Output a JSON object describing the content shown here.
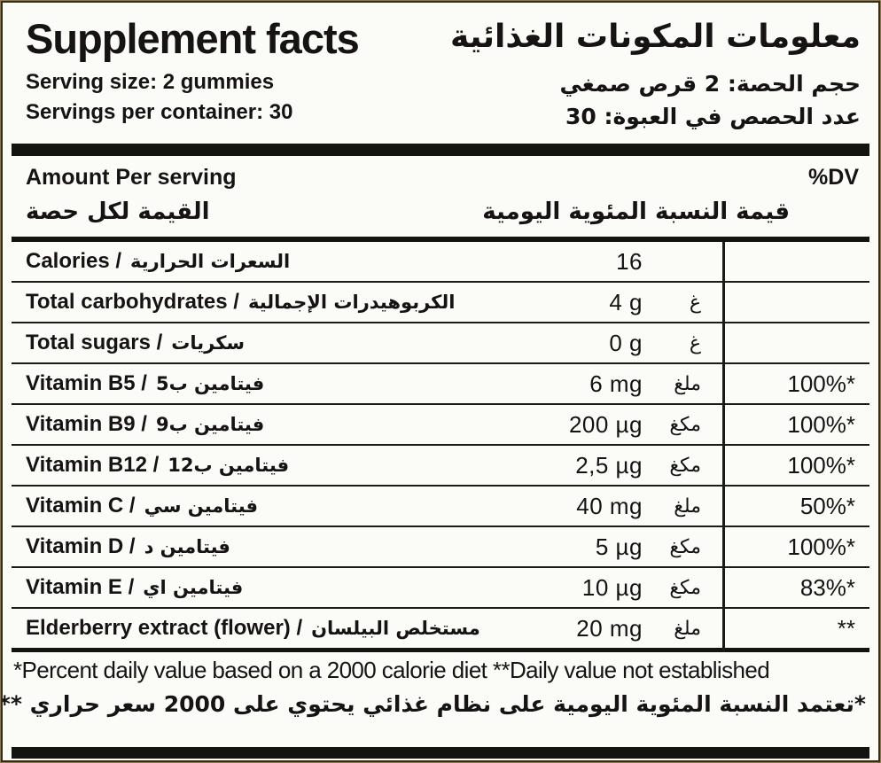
{
  "header": {
    "title_en": "Supplement facts",
    "title_ar": "معلومات المكونات الغذائية",
    "serving_size_en": "Serving size: 2  gummies",
    "serving_size_ar": "حجم الحصة: 2 قرص صمغي",
    "servings_per_container_en": "Servings per container: 30",
    "servings_per_container_ar": "عدد الحصص في العبوة: 30"
  },
  "table": {
    "amount_header_en": "Amount Per serving",
    "amount_header_ar": "القيمة لكل حصة",
    "dv_header_en": "%DV",
    "dv_header_ar": "قيمة النسبة المئوية اليومية",
    "rows": [
      {
        "name_en": "Calories /",
        "name_ar": "السعرات الحرارية",
        "amount": "16",
        "unit_ar": "",
        "dv": ""
      },
      {
        "name_en": "Total carbohydrates /",
        "name_ar": "الكربوهيدرات الإجمالية",
        "amount": "4 g",
        "unit_ar": "غ",
        "dv": ""
      },
      {
        "name_en": "Total sugars /",
        "name_ar": "سكريات",
        "amount": "0 g",
        "unit_ar": "غ",
        "dv": ""
      },
      {
        "name_en": "Vitamin B5 /",
        "name_ar": "فيتامين ب5",
        "amount": "6 mg",
        "unit_ar": "ملغ",
        "dv": "100%*"
      },
      {
        "name_en": "Vitamin B9 /",
        "name_ar": "فيتامين ب9",
        "amount": "200 µg",
        "unit_ar": "مكغ",
        "dv": "100%*"
      },
      {
        "name_en": "Vitamin B12 /",
        "name_ar": "فيتامين ب12",
        "amount": "2,5 µg",
        "unit_ar": "مكغ",
        "dv": "100%*"
      },
      {
        "name_en": "Vitamin C /",
        "name_ar": "فيتامين سي",
        "amount": "40 mg",
        "unit_ar": "ملغ",
        "dv": "50%*"
      },
      {
        "name_en": "Vitamin D /",
        "name_ar": "فيتامين د",
        "amount": "5 µg",
        "unit_ar": "مكغ",
        "dv": "100%*"
      },
      {
        "name_en": "Vitamin E /",
        "name_ar": "فيتامين اي",
        "amount": "10 µg",
        "unit_ar": "مكغ",
        "dv": "83%*"
      },
      {
        "name_en": "Elderberry extract (flower) /",
        "name_ar": "مستخلص البيلسان",
        "amount": "20 mg",
        "unit_ar": "ملغ",
        "dv": "**"
      }
    ]
  },
  "footer": {
    "en": "*Percent daily value based on a 2000 calorie diet  **Daily value not established",
    "ar": "*تعتمد النسبة المئوية اليومية على نظام غذائي يحتوي على 2000 سعر حراري **القيمة اليومية غير متأسسة"
  },
  "colors": {
    "ink": "#161412",
    "bar_black": "#131310",
    "frame_border": "#3a2a18",
    "background": "#fbfbf8"
  }
}
